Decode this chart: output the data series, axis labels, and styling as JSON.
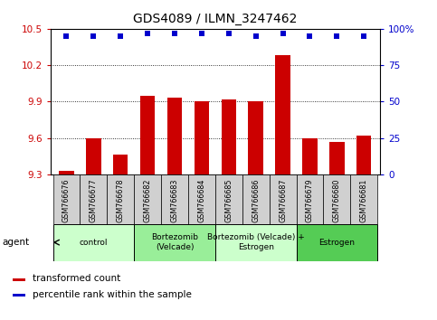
{
  "title": "GDS4089 / ILMN_3247462",
  "samples": [
    "GSM766676",
    "GSM766677",
    "GSM766678",
    "GSM766682",
    "GSM766683",
    "GSM766684",
    "GSM766685",
    "GSM766686",
    "GSM766687",
    "GSM766679",
    "GSM766680",
    "GSM766681"
  ],
  "bar_values": [
    9.33,
    9.6,
    9.46,
    9.95,
    9.93,
    9.9,
    9.92,
    9.9,
    10.28,
    9.6,
    9.57,
    9.62
  ],
  "percentile_values": [
    95,
    95,
    95,
    97,
    97,
    97,
    97,
    95,
    97,
    95,
    95,
    95
  ],
  "ylim_left": [
    9.3,
    10.5
  ],
  "ylim_right": [
    0,
    100
  ],
  "yticks_left": [
    9.3,
    9.6,
    9.9,
    10.2,
    10.5
  ],
  "yticks_right": [
    0,
    25,
    50,
    75,
    100
  ],
  "bar_color": "#cc0000",
  "dot_color": "#0000cc",
  "agent_groups": [
    {
      "label": "control",
      "start": 0,
      "end": 3,
      "color": "#ccffcc"
    },
    {
      "label": "Bortezomib\n(Velcade)",
      "start": 3,
      "end": 6,
      "color": "#99ee99"
    },
    {
      "label": "Bortezomib (Velcade) +\nEstrogen",
      "start": 6,
      "end": 9,
      "color": "#ccffcc"
    },
    {
      "label": "Estrogen",
      "start": 9,
      "end": 12,
      "color": "#55cc55"
    }
  ],
  "legend_bar_label": "transformed count",
  "legend_dot_label": "percentile rank within the sample",
  "agent_label": "agent",
  "bar_width": 0.55,
  "dot_size": 18,
  "sample_box_color": "#d0d0d0"
}
